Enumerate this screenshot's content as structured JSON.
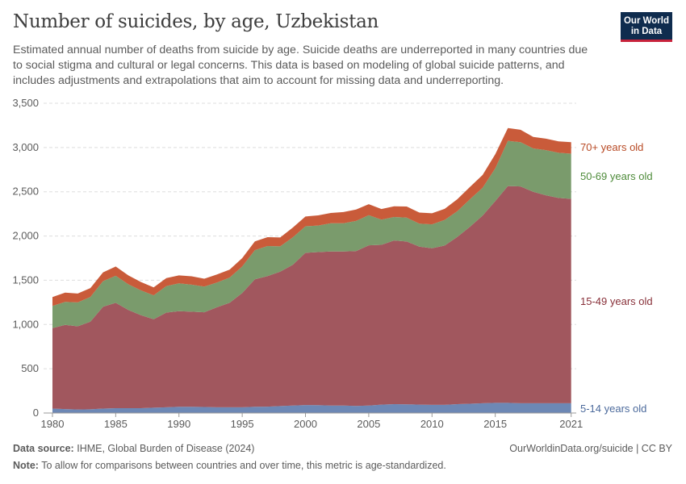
{
  "header": {
    "title": "Number of suicides, by age, Uzbekistan",
    "subtitle": "Estimated annual number of deaths from suicide by age. Suicide deaths are underreported in many countries due to social stigma and cultural or legal concerns. This data is based on modeling of global suicide patterns, and includes adjustments and extrapolations that aim to account for missing data and underreporting.",
    "logo_line1": "Our World",
    "logo_line2": "in Data"
  },
  "footer": {
    "source_label": "Data source:",
    "source_text": "IHME, Global Burden of Disease (2024)",
    "url_text": "OurWorldinData.org/suicide | CC BY",
    "note_label": "Note:",
    "note_text": "To allow for comparisons between countries and over time, this metric is age-standardized."
  },
  "colors": {
    "5-14": "#6d88b5",
    "15-49": "#a1575e",
    "50-69": "#7a9b6c",
    "70+": "#c95b3a",
    "label_5-14": "#4c6a9c",
    "label_15-49": "#883039",
    "label_50-69": "#4e8b3a",
    "label_70+": "#b84a25"
  },
  "chart_data": {
    "type": "area",
    "stacked": true,
    "title": "Number of suicides, by age, Uzbekistan",
    "x": [
      1980,
      1981,
      1982,
      1983,
      1984,
      1985,
      1986,
      1987,
      1988,
      1989,
      1990,
      1991,
      1992,
      1993,
      1994,
      1995,
      1996,
      1997,
      1998,
      1999,
      2000,
      2001,
      2002,
      2003,
      2004,
      2005,
      2006,
      2007,
      2008,
      2009,
      2010,
      2011,
      2012,
      2013,
      2014,
      2015,
      2016,
      2017,
      2018,
      2019,
      2020,
      2021
    ],
    "xlim": [
      1979.3,
      2021.4
    ],
    "ylim": [
      0,
      3500
    ],
    "x_ticks": [
      1980,
      1985,
      1990,
      1995,
      2000,
      2005,
      2010,
      2015,
      2021
    ],
    "y_ticks": [
      0,
      500,
      1000,
      1500,
      2000,
      2500,
      3000,
      3500
    ],
    "y_tick_labels": [
      "0",
      "500",
      "1,000",
      "1,500",
      "2,000",
      "2,500",
      "3,000",
      "3,500"
    ],
    "grid": "horizontal dashed",
    "legend": "right, inline labels",
    "series": [
      {
        "name": "5-14 years old",
        "key": "5-14",
        "values": [
          50,
          45,
          40,
          42,
          50,
          55,
          55,
          55,
          60,
          65,
          70,
          70,
          68,
          65,
          65,
          65,
          70,
          72,
          78,
          85,
          90,
          88,
          85,
          85,
          80,
          85,
          95,
          100,
          98,
          95,
          92,
          92,
          100,
          105,
          110,
          115,
          115,
          110,
          110,
          110,
          110,
          110
        ]
      },
      {
        "name": "15-49 years old",
        "key": "15-49",
        "values": [
          910,
          950,
          940,
          990,
          1150,
          1190,
          1110,
          1050,
          1000,
          1070,
          1080,
          1075,
          1070,
          1130,
          1180,
          1290,
          1440,
          1475,
          1520,
          1590,
          1720,
          1730,
          1740,
          1740,
          1750,
          1810,
          1805,
          1850,
          1840,
          1785,
          1770,
          1800,
          1890,
          2000,
          2120,
          2280,
          2450,
          2450,
          2390,
          2350,
          2320,
          2310
        ]
      },
      {
        "name": "50-69 years old",
        "key": "50-69",
        "values": [
          250,
          260,
          270,
          280,
          290,
          305,
          290,
          280,
          270,
          300,
          315,
          305,
          290,
          280,
          285,
          300,
          330,
          340,
          285,
          310,
          300,
          300,
          320,
          320,
          340,
          340,
          285,
          265,
          270,
          260,
          270,
          290,
          290,
          310,
          315,
          370,
          510,
          500,
          490,
          510,
          510,
          510
        ]
      },
      {
        "name": "70+ years old",
        "key": "70+",
        "values": [
          100,
          105,
          100,
          100,
          100,
          105,
          100,
          95,
          90,
          90,
          90,
          95,
          90,
          90,
          90,
          95,
          100,
          100,
          100,
          110,
          110,
          115,
          115,
          125,
          130,
          125,
          120,
          120,
          125,
          125,
          125,
          125,
          135,
          140,
          145,
          160,
          145,
          140,
          130,
          130,
          130,
          130
        ]
      }
    ]
  }
}
